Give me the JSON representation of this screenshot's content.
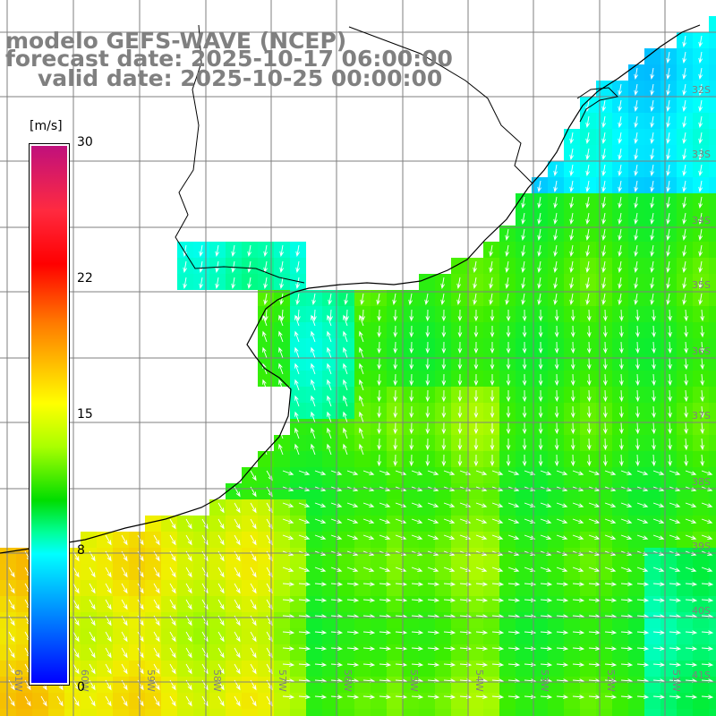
{
  "title": {
    "line1": "modelo GEFS-WAVE (NCEP)",
    "line2": "forecast date: 2025-10-17 06:00:00",
    "line3": "valid date: 2025-10-25 00:00:00"
  },
  "colorbar": {
    "unit": "[m/s]",
    "ticks": [
      "30",
      "22",
      "15",
      "8",
      "0"
    ],
    "tick_values": [
      30,
      22,
      15,
      8,
      0
    ]
  },
  "map": {
    "lon_labels": [
      "61W",
      "60W",
      "59W",
      "58W",
      "57W",
      "56W",
      "55W",
      "54W",
      "53W",
      "52W",
      "51W"
    ],
    "lat_labels": [
      "32S",
      "33S",
      "34S",
      "35S",
      "36S",
      "37S",
      "38S",
      "39S",
      "40S",
      "41S"
    ],
    "colors": {
      "land": "#ffffff",
      "coast": "#000000",
      "grid": "#7f7f7f",
      "arrows": "#ffffff",
      "field_low": "#00ffff",
      "field_mid": "#00e800",
      "field_high": "#f0f000"
    }
  }
}
